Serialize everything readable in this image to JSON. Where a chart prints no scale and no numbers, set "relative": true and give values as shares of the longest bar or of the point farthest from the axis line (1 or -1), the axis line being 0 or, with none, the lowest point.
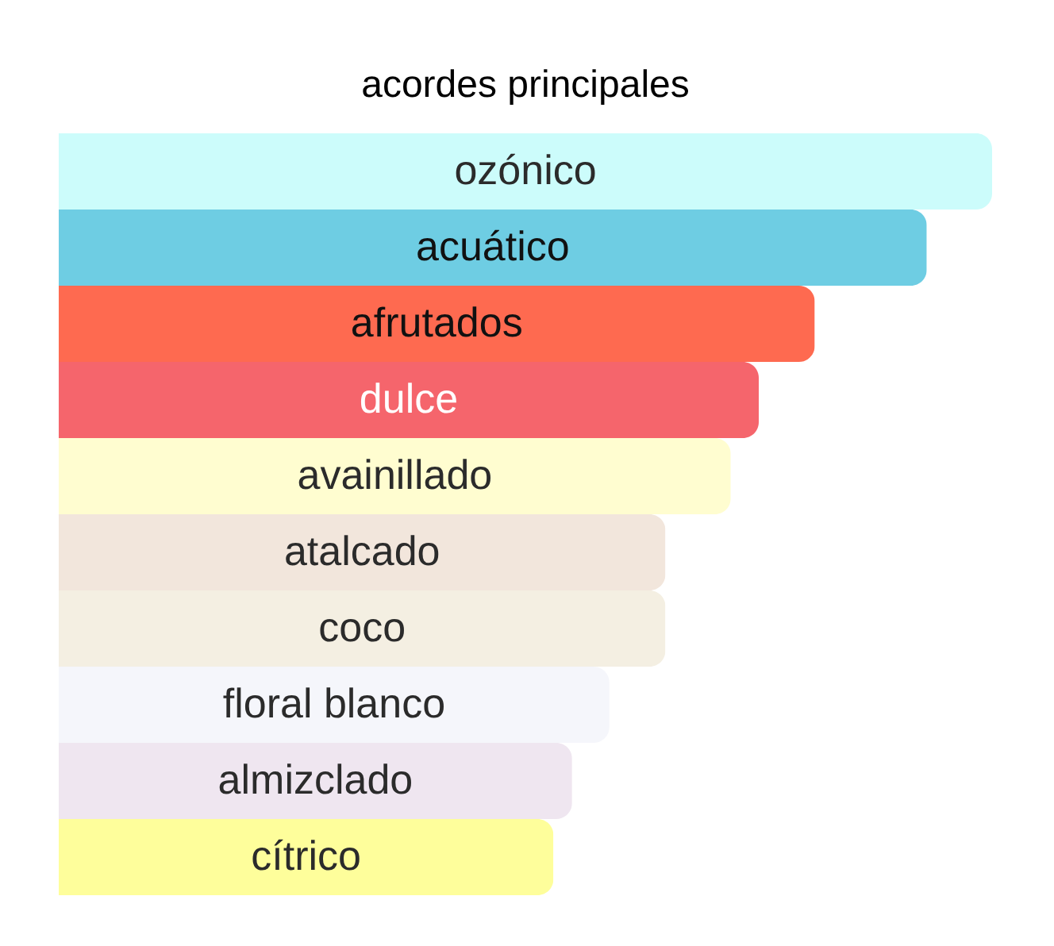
{
  "chart_data": {
    "type": "bar",
    "orientation": "horizontal",
    "relative": true,
    "title": "acordes principales",
    "categories": [
      "ozónico",
      "acuático",
      "afrutados",
      "dulce",
      "avainillado",
      "atalcado",
      "coco",
      "floral blanco",
      "almizclado",
      "cítrico"
    ],
    "values": [
      1,
      0.93,
      0.81,
      0.75,
      0.72,
      0.65,
      0.65,
      0.59,
      0.55,
      0.53
    ],
    "colors": [
      "#ccfcfb",
      "#6ecde3",
      "#fe6a50",
      "#f5656c",
      "#fffdd0",
      "#f2e6dc",
      "#f4efe2",
      "#f5f6fb",
      "#efe6f0",
      "#fefe9b"
    ]
  }
}
